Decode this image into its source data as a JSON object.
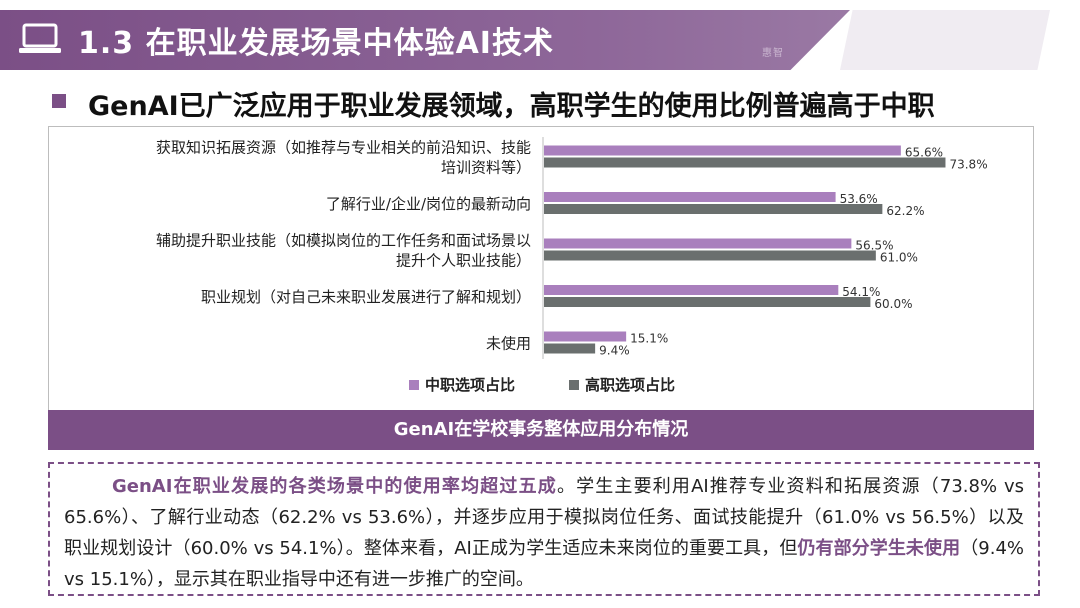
{
  "header": {
    "title": "1.3 在职业发展场景中体验AI技术",
    "icon": "laptop-icon",
    "logo_mark": "惠智"
  },
  "subtitle": "GenAI已广泛应用于职业发展领域，高职学生的使用比例普遍高于中职",
  "caption": "GenAI在学校事务整体应用分布情况",
  "summary": {
    "lead": "GenAI在职业发展的各类场景中的使用率均超过五成",
    "part1": "。学生主要利用AI推荐专业资料和拓展资源（73.8% vs 65.6%）、了解行业动态（62.2% vs 53.6%），并逐步应用于模拟岗位任务、面试技能提升（61.0% vs 56.5%）以及职业规划设计（60.0% vs 54.1%）。整体来看，AI正成为学生适应未来岗位的重要工具，但",
    "highlight2": "仍有部分学生未使用",
    "part2": "（9.4% vs 15.1%），显示其在职业指导中还有进一步推广的空间。"
  },
  "chart_data": {
    "type": "bar",
    "orientation": "horizontal",
    "categories": [
      [
        "获取知识拓展资源（如推荐与专业相关的前沿知识、技能",
        "培训资料等）"
      ],
      [
        "了解行业/企业/岗位的最新动向"
      ],
      [
        "辅助提升职业技能（如模拟岗位的工作任务和面试场景以",
        "提升个人职业技能）"
      ],
      [
        "职业规划（对自己未来职业发展进行了解和规划）"
      ],
      [
        "未使用"
      ]
    ],
    "series": [
      {
        "name": "中职选项占比",
        "color": "#a97fbd",
        "values": [
          65.6,
          53.6,
          56.5,
          54.1,
          15.1
        ]
      },
      {
        "name": "高职选项占比",
        "color": "#6a6f6e",
        "values": [
          73.8,
          62.2,
          61.0,
          60.0,
          9.4
        ]
      }
    ],
    "value_suffix": "%",
    "xlim": [
      0,
      80
    ],
    "legend": "bottom",
    "grid": false
  }
}
